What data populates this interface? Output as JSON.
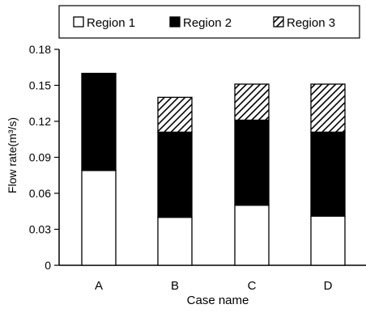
{
  "chart_data": {
    "type": "bar",
    "stacked": true,
    "categories": [
      "A",
      "B",
      "C",
      "D"
    ],
    "series": [
      {
        "name": "Region 1",
        "values": [
          0.079,
          0.04,
          0.05,
          0.041
        ],
        "fill": "#ffffff",
        "pattern": "solid"
      },
      {
        "name": "Region 2",
        "values": [
          0.081,
          0.071,
          0.071,
          0.07
        ],
        "fill": "#000000",
        "pattern": "solid"
      },
      {
        "name": "Region 3",
        "values": [
          0.0,
          0.029,
          0.03,
          0.04
        ],
        "fill": "#ffffff",
        "pattern": "hatch"
      }
    ],
    "title": "",
    "xlabel": "Case name",
    "ylabel": "Flow rate(m³/s)",
    "ylim": [
      0,
      0.18
    ],
    "yticks": [
      "0",
      "0.03",
      "0.06",
      "0.09",
      "0.12",
      "0.15",
      "0.18"
    ],
    "grid": false,
    "legend_position": "top"
  }
}
